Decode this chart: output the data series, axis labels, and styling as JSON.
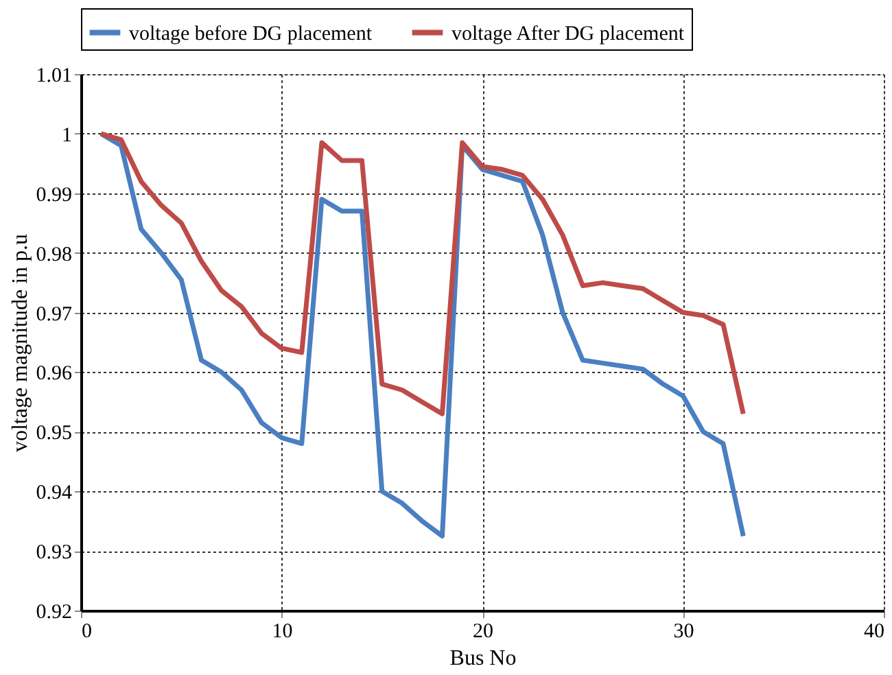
{
  "chart_data": {
    "type": "line",
    "xlabel": "Bus No",
    "ylabel": "voltage magnitude in p.u",
    "x": [
      1,
      2,
      3,
      4,
      5,
      6,
      7,
      8,
      9,
      10,
      11,
      12,
      13,
      14,
      15,
      16,
      17,
      18,
      19,
      20,
      21,
      22,
      23,
      24,
      25,
      26,
      27,
      28,
      29,
      30,
      31,
      32,
      33
    ],
    "series": [
      {
        "name": "voltage before DG placement",
        "color": "#4a7fc1",
        "values": [
          1.0,
          0.998,
          0.984,
          0.98,
          0.9755,
          0.962,
          0.96,
          0.957,
          0.9515,
          0.949,
          0.948,
          0.989,
          0.987,
          0.987,
          0.94,
          0.938,
          0.935,
          0.9325,
          0.998,
          0.994,
          0.993,
          0.992,
          0.983,
          0.97,
          0.962,
          0.9615,
          0.961,
          0.9605,
          0.958,
          0.956,
          0.95,
          0.948,
          0.9325
        ]
      },
      {
        "name": "voltage After DG placement",
        "color": "#be4b48",
        "values": [
          1.0,
          0.999,
          0.992,
          0.988,
          0.985,
          0.9786,
          0.9737,
          0.971,
          0.9665,
          0.964,
          0.9633,
          0.9985,
          0.9955,
          0.9955,
          0.958,
          0.957,
          0.955,
          0.953,
          0.9985,
          0.9945,
          0.994,
          0.993,
          0.989,
          0.983,
          0.9745,
          0.975,
          0.9745,
          0.974,
          0.972,
          0.97,
          0.9695,
          0.968,
          0.953
        ]
      }
    ],
    "xlim": [
      0,
      40
    ],
    "xticks": [
      0,
      10,
      20,
      30,
      40
    ],
    "ylim": [
      0.92,
      1.01
    ],
    "yticks": [
      0.92,
      0.93,
      0.94,
      0.95,
      0.96,
      0.97,
      0.98,
      0.99,
      1,
      1.01
    ],
    "grid": true,
    "legend": "top",
    "line_style": "solid",
    "marker": "none"
  }
}
